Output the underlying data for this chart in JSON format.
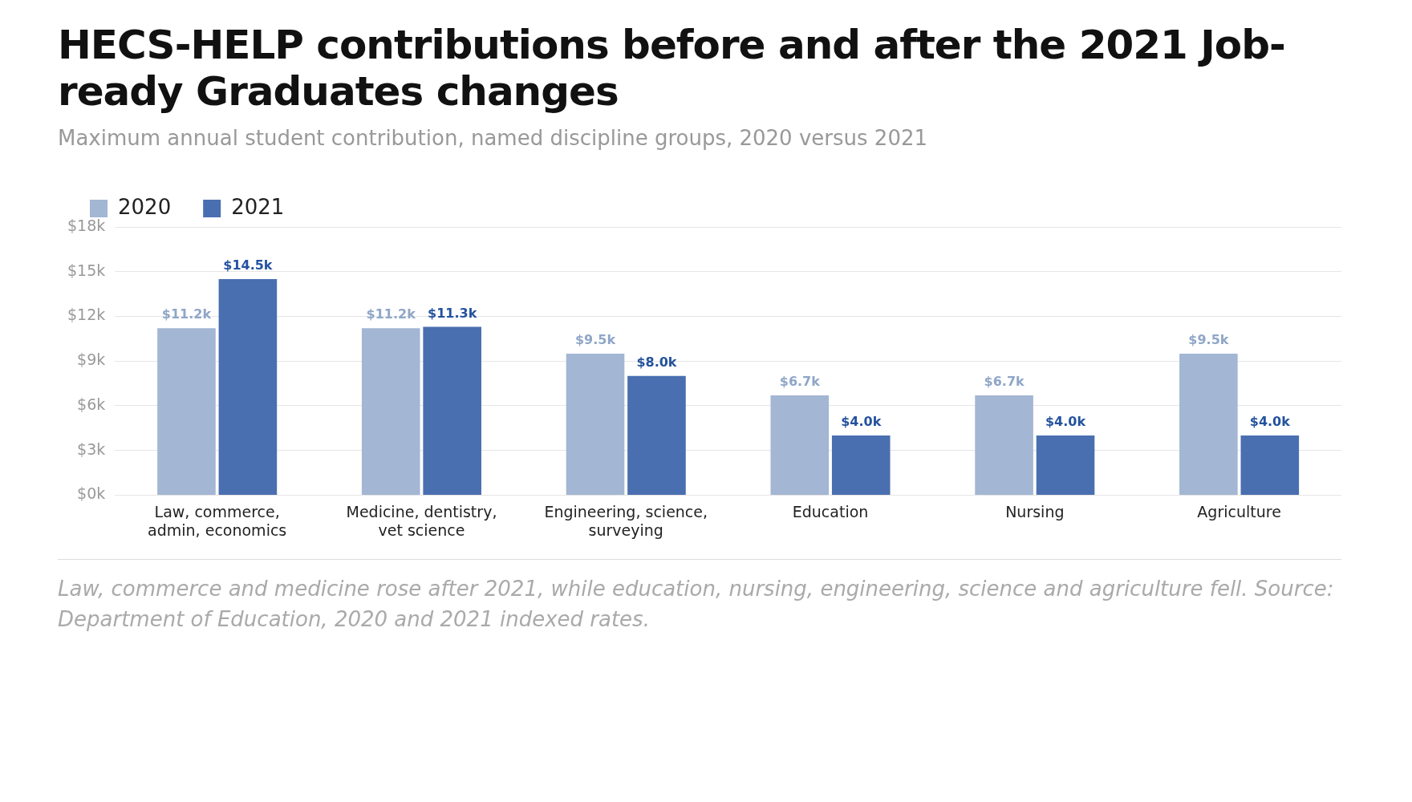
{
  "chart_data": {
    "type": "bar",
    "title": "HECS-HELP contributions before and after the 2021 Job-ready Graduates changes",
    "subtitle": "Maximum annual student contribution, named discipline groups, 2020 versus 2021",
    "categories": [
      "Law, commerce, admin, economics",
      "Medicine, dentistry, vet science",
      "Engineering, science, surveying",
      "Education",
      "Nursing",
      "Agriculture"
    ],
    "series": [
      {
        "name": "2020",
        "color": "#a3b6d3",
        "values": [
          11.2,
          11.2,
          9.5,
          6.7,
          6.7,
          9.5
        ],
        "value_labels": [
          "$11.2k",
          "$11.2k",
          "$9.5k",
          "$6.7k",
          "$6.7k",
          "$9.5k"
        ]
      },
      {
        "name": "2021",
        "color": "#4a6fb0",
        "values": [
          14.5,
          11.3,
          8.0,
          4.0,
          4.0,
          4.0
        ],
        "value_labels": [
          "$14.5k",
          "$11.3k",
          "$8.0k",
          "$4.0k",
          "$4.0k",
          "$4.0k"
        ]
      }
    ],
    "ylim": [
      0,
      18
    ],
    "yticks": [
      {
        "value": 0,
        "label": "$0k"
      },
      {
        "value": 3,
        "label": "$3k"
      },
      {
        "value": 6,
        "label": "$6k"
      },
      {
        "value": 9,
        "label": "$9k"
      },
      {
        "value": 12,
        "label": "$12k"
      },
      {
        "value": 15,
        "label": "$15k"
      },
      {
        "value": 18,
        "label": "$18k"
      }
    ],
    "grid": "y",
    "legend": "top left",
    "annotations": [
      "Law, commerce and medicine rose after 2021, while education, nursing, engineering, science and agriculture fell. Source: Department of Education, 2020 and 2021 indexed rates."
    ]
  }
}
